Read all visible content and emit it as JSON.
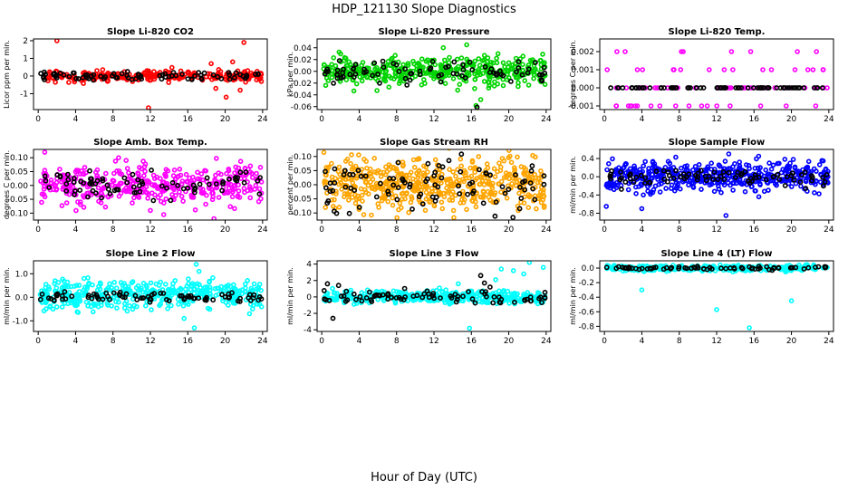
{
  "figure": {
    "title": "HDP_121130  Slope Diagnostics",
    "xlabel": "Hour of Day (UTC)"
  },
  "chart_data": [
    {
      "type": "scatter",
      "title": "Slope Li-820 CO2",
      "ylabel": "Licor ppm per min.",
      "xlim": [
        -0.5,
        24.5
      ],
      "ylim": [
        -1.9,
        2.1
      ],
      "xticks": [
        0,
        4,
        8,
        12,
        16,
        20,
        24
      ],
      "yticks": [
        -1,
        0,
        1,
        2
      ],
      "ytick_labels": [
        "-1",
        "0",
        "1",
        "2"
      ],
      "series": [
        {
          "name": "samples",
          "color": "#ff0000",
          "count": 260,
          "center": 0,
          "spread": 0.16,
          "seed": 11,
          "outliers": [
            [
              2.0,
              2.0
            ],
            [
              11.8,
              -1.8
            ],
            [
              19.0,
              -0.7
            ],
            [
              20.1,
              -1.2
            ],
            [
              20.8,
              0.8
            ],
            [
              21.6,
              -0.8
            ],
            [
              22.0,
              1.9
            ],
            [
              18.5,
              0.7
            ]
          ]
        },
        {
          "name": "means",
          "color": "#000000",
          "count": 80,
          "center": 0,
          "spread": 0.12,
          "seed": 12,
          "outliers": []
        }
      ]
    },
    {
      "type": "scatter",
      "title": "Slope Li-820 Pressure",
      "ylabel": "kPa per min.",
      "xlim": [
        -0.5,
        24.5
      ],
      "ylim": [
        -0.065,
        0.055
      ],
      "xticks": [
        0,
        4,
        8,
        12,
        16,
        20,
        24
      ],
      "yticks": [
        -0.06,
        -0.04,
        -0.02,
        0.0,
        0.02,
        0.04
      ],
      "ytick_labels": [
        "-0.06",
        "-0.04",
        "-0.02",
        "0.00",
        "0.02",
        "0.04"
      ],
      "series": [
        {
          "name": "samples",
          "color": "#00d400",
          "count": 420,
          "center": 0.0,
          "spread": 0.012,
          "seed": 21,
          "outliers": [
            [
              17.0,
              -0.048
            ],
            [
              16.5,
              -0.058
            ],
            [
              15.5,
              0.045
            ],
            [
              13.0,
              0.04
            ]
          ]
        },
        {
          "name": "means",
          "color": "#000000",
          "count": 80,
          "center": 0.0,
          "spread": 0.009,
          "seed": 22,
          "outliers": [
            [
              16.6,
              -0.061
            ]
          ]
        }
      ]
    },
    {
      "type": "scatter",
      "title": "Slope Li-820 Temp.",
      "ylabel": "degrees C per min.",
      "xlim": [
        -0.5,
        24.5
      ],
      "ylim": [
        -0.0012,
        0.0027
      ],
      "xticks": [
        0,
        4,
        8,
        12,
        16,
        20,
        24
      ],
      "yticks": [
        -0.001,
        0.0,
        0.001,
        0.002
      ],
      "ytick_labels": [
        "-0.001",
        "0.000",
        "0.001",
        "0.002"
      ],
      "levels": [
        -0.001,
        0.0,
        0.001,
        0.002
      ],
      "series": [
        {
          "name": "samples",
          "color": "#ff00ff",
          "count": 90,
          "center": 0,
          "spread": 0,
          "seed": 31,
          "outliers": []
        },
        {
          "name": "means",
          "color": "#000000",
          "count": 70,
          "center": 0,
          "spread": 0,
          "seed": 32,
          "outliers": []
        }
      ]
    },
    {
      "type": "scatter",
      "title": "Slope Amb. Box Temp.",
      "ylabel": "degrees C per min.",
      "xlim": [
        -0.5,
        24.5
      ],
      "ylim": [
        -0.125,
        0.13
      ],
      "xticks": [
        0,
        4,
        8,
        12,
        16,
        20,
        24
      ],
      "yticks": [
        -0.1,
        -0.05,
        0.0,
        0.05,
        0.1
      ],
      "ytick_labels": [
        "-0.10",
        "-0.05",
        "0.00",
        "0.05",
        "0.10"
      ],
      "series": [
        {
          "name": "samples",
          "color": "#ff00ff",
          "count": 380,
          "center": 0,
          "spread": 0.035,
          "seed": 41,
          "outliers": [
            [
              0.7,
              0.12
            ],
            [
              8.6,
              0.1
            ],
            [
              18.8,
              -0.12
            ],
            [
              9.4,
              0.09
            ]
          ]
        },
        {
          "name": "means",
          "color": "#000000",
          "count": 80,
          "center": 0,
          "spread": 0.022,
          "seed": 42,
          "outliers": []
        }
      ]
    },
    {
      "type": "scatter",
      "title": "Slope Gas Stream RH",
      "ylabel": "percent per min.",
      "xlim": [
        -0.5,
        24.5
      ],
      "ylim": [
        -0.125,
        0.125
      ],
      "xticks": [
        0,
        4,
        8,
        12,
        16,
        20,
        24
      ],
      "yticks": [
        -0.1,
        -0.05,
        0.0,
        0.05,
        0.1
      ],
      "ytick_labels": [
        "-0.10",
        "-0.05",
        "0.00",
        "0.05",
        "0.10"
      ],
      "series": [
        {
          "name": "samples",
          "color": "#ffa500",
          "count": 520,
          "center": 0,
          "spread": 0.045,
          "seed": 51,
          "outliers": []
        },
        {
          "name": "means",
          "color": "#000000",
          "count": 90,
          "center": 0,
          "spread": 0.045,
          "seed": 52,
          "outliers": []
        }
      ]
    },
    {
      "type": "scatter",
      "title": "Slope Sample Flow",
      "ylabel": "ml/min per min.",
      "xlim": [
        -0.5,
        24.5
      ],
      "ylim": [
        -0.95,
        0.6
      ],
      "xticks": [
        0,
        4,
        8,
        12,
        16,
        20,
        24
      ],
      "yticks": [
        -0.8,
        -0.4,
        0.0,
        0.4
      ],
      "ytick_labels": [
        "-0.8",
        "-0.4",
        "0.0",
        "0.4"
      ],
      "series": [
        {
          "name": "samples",
          "color": "#0000ff",
          "count": 480,
          "center": 0,
          "spread": 0.16,
          "seed": 61,
          "outliers": [
            [
              13.0,
              -0.85
            ],
            [
              13.3,
              0.5
            ],
            [
              4.0,
              -0.7
            ],
            [
              0.2,
              -0.65
            ],
            [
              16.5,
              0.45
            ],
            [
              20.2,
              0.38
            ]
          ]
        },
        {
          "name": "means",
          "color": "#000000",
          "count": 80,
          "center": 0,
          "spread": 0.09,
          "seed": 62,
          "outliers": []
        }
      ]
    },
    {
      "type": "scatter",
      "title": "Slope Line 2 Flow",
      "ylabel": "ml/min per min.",
      "xlim": [
        -0.5,
        24.5
      ],
      "ylim": [
        -1.45,
        1.55
      ],
      "xticks": [
        0,
        4,
        8,
        12,
        16,
        20,
        24
      ],
      "yticks": [
        -1.0,
        0.0,
        1.0
      ],
      "ytick_labels": [
        "-1.0",
        "0.0",
        "1.0"
      ],
      "series": [
        {
          "name": "samples",
          "color": "#00ffff",
          "count": 400,
          "center": 0.1,
          "spread": 0.3,
          "seed": 71,
          "outliers": [
            [
              16.7,
              -1.3
            ],
            [
              15.6,
              -0.9
            ],
            [
              16.9,
              1.4
            ],
            [
              17.2,
              1.1
            ],
            [
              22.6,
              -0.7
            ]
          ]
        },
        {
          "name": "means",
          "color": "#000000",
          "count": 80,
          "center": 0.0,
          "spread": 0.12,
          "seed": 72,
          "outliers": []
        }
      ]
    },
    {
      "type": "scatter",
      "title": "Slope Line 3 Flow",
      "ylabel": "ml/min per min.",
      "xlim": [
        -0.5,
        24.5
      ],
      "ylim": [
        -4.2,
        4.4
      ],
      "xticks": [
        0,
        4,
        8,
        12,
        16,
        20,
        24
      ],
      "yticks": [
        -4,
        -2,
        0,
        2,
        4
      ],
      "ytick_labels": [
        "-4",
        "-2",
        "0",
        "2",
        "4"
      ],
      "series": [
        {
          "name": "samples",
          "color": "#00ffff",
          "count": 420,
          "center": 0,
          "spread": 0.4,
          "seed": 81,
          "outliers": [
            [
              20.5,
              3.2
            ],
            [
              22.2,
              4.2
            ],
            [
              21.6,
              2.8
            ],
            [
              19.2,
              3.4
            ],
            [
              23.7,
              3.6
            ],
            [
              15.8,
              -3.8
            ],
            [
              18.6,
              2.1
            ],
            [
              14.6,
              1.6
            ]
          ]
        },
        {
          "name": "means",
          "color": "#000000",
          "count": 80,
          "center": 0,
          "spread": 0.35,
          "seed": 82,
          "outliers": [
            [
              1.2,
              -2.6
            ],
            [
              17.4,
              1.7
            ],
            [
              17.0,
              2.6
            ],
            [
              0.6,
              1.6
            ],
            [
              1.8,
              1.4
            ],
            [
              18.0,
              1.2
            ]
          ]
        }
      ]
    },
    {
      "type": "scatter",
      "title": "Slope Line 4 (LT) Flow",
      "ylabel": "ml/min per min.",
      "xlim": [
        -0.5,
        24.5
      ],
      "ylim": [
        -0.87,
        0.1
      ],
      "xticks": [
        0,
        4,
        8,
        12,
        16,
        20,
        24
      ],
      "yticks": [
        -0.8,
        -0.6,
        -0.4,
        -0.2,
        0.0
      ],
      "ytick_labels": [
        "-0.8",
        "-0.6",
        "-0.4",
        "-0.2",
        "0.0"
      ],
      "series": [
        {
          "name": "samples",
          "color": "#00ffff",
          "count": 300,
          "center": 0.0,
          "spread": 0.02,
          "seed": 91,
          "outliers": [
            [
              4.0,
              -0.3
            ],
            [
              12.0,
              -0.57
            ],
            [
              15.5,
              -0.82
            ],
            [
              20.0,
              -0.45
            ]
          ]
        },
        {
          "name": "means",
          "color": "#000000",
          "count": 70,
          "center": 0.0,
          "spread": 0.012,
          "seed": 92,
          "outliers": []
        }
      ]
    }
  ]
}
